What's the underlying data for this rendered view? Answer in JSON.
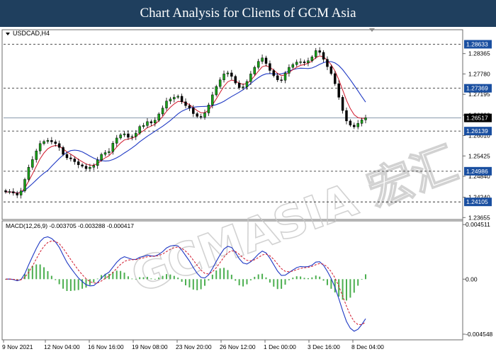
{
  "header": {
    "title": "Chart Analysis for Clients of GCM Asia"
  },
  "watermark": {
    "text": "GCMASIA 宏汇"
  },
  "chart_data": {
    "type": "candlestick",
    "symbol": "USDCAD,H4",
    "ylim": [
      1.236,
      1.2905
    ],
    "y_ticks": [
      "1.28365",
      "1.27780",
      "1.27195",
      "1.26600",
      "1.26010",
      "1.25425",
      "1.24840",
      "1.24240",
      "1.23655"
    ],
    "x_ticks": [
      "9 Nov 2021",
      "12 Nov 04:00",
      "16 Nov 16:00",
      "19 Nov 08:00",
      "23 Nov 20:00",
      "26 Nov 12:00",
      "1 Dec 00:00",
      "3 Dec 16:00",
      "8 Dec 04:00"
    ],
    "levels": [
      {
        "value": 1.28633,
        "label": "1.28633"
      },
      {
        "value": 1.27369,
        "label": "1.27369"
      },
      {
        "value": 1.26139,
        "label": "1.26139"
      },
      {
        "value": 1.24986,
        "label": "1.24986"
      },
      {
        "value": 1.24105,
        "label": "1.24105"
      }
    ],
    "current_price": {
      "value": 1.26517,
      "label": "1.26517"
    },
    "colors": {
      "level_label_bg": "#1a4fa0",
      "current_label_bg": "#000000",
      "bull": "#1aa31a",
      "bear": "#000000",
      "ma_fast": "#d0172b",
      "ma_slow": "#1f39c4",
      "macd_hist": "#4caf50"
    },
    "closes": [
      1.2439,
      1.244,
      1.2436,
      1.243,
      1.2442,
      1.2475,
      1.251,
      1.2532,
      1.2557,
      1.2578,
      1.2584,
      1.2587,
      1.2583,
      1.2578,
      1.2567,
      1.2547,
      1.2537,
      1.2534,
      1.2526,
      1.2517,
      1.2513,
      1.2506,
      1.251,
      1.2515,
      1.2531,
      1.2547,
      1.2552,
      1.2555,
      1.2579,
      1.2594,
      1.2603,
      1.2606,
      1.2596,
      1.2598,
      1.2608,
      1.2627,
      1.263,
      1.2641,
      1.2637,
      1.2645,
      1.2663,
      1.268,
      1.27,
      1.2706,
      1.2711,
      1.2714,
      1.2698,
      1.2687,
      1.268,
      1.2664,
      1.2656,
      1.2654,
      1.2666,
      1.2689,
      1.2718,
      1.2742,
      1.2761,
      1.2778,
      1.2781,
      1.2771,
      1.2752,
      1.2739,
      1.2741,
      1.2756,
      1.2778,
      1.2797,
      1.2814,
      1.2824,
      1.2808,
      1.2788,
      1.2773,
      1.2761,
      1.276,
      1.278,
      1.2797,
      1.2805,
      1.2812,
      1.2813,
      1.281,
      1.2816,
      1.2827,
      1.2845,
      1.284,
      1.282,
      1.2799,
      1.2779,
      1.275,
      1.2711,
      1.2673,
      1.2643,
      1.2631,
      1.2626,
      1.2636,
      1.2646,
      1.2652
    ],
    "macd": {
      "label": "MACD(12,26,9) -0.003705 -0.003288 -0.000417",
      "y_ticks": [
        "0.004511",
        "0.00",
        "-0.004548"
      ],
      "ylim": [
        -0.0049,
        0.0047
      ]
    }
  }
}
